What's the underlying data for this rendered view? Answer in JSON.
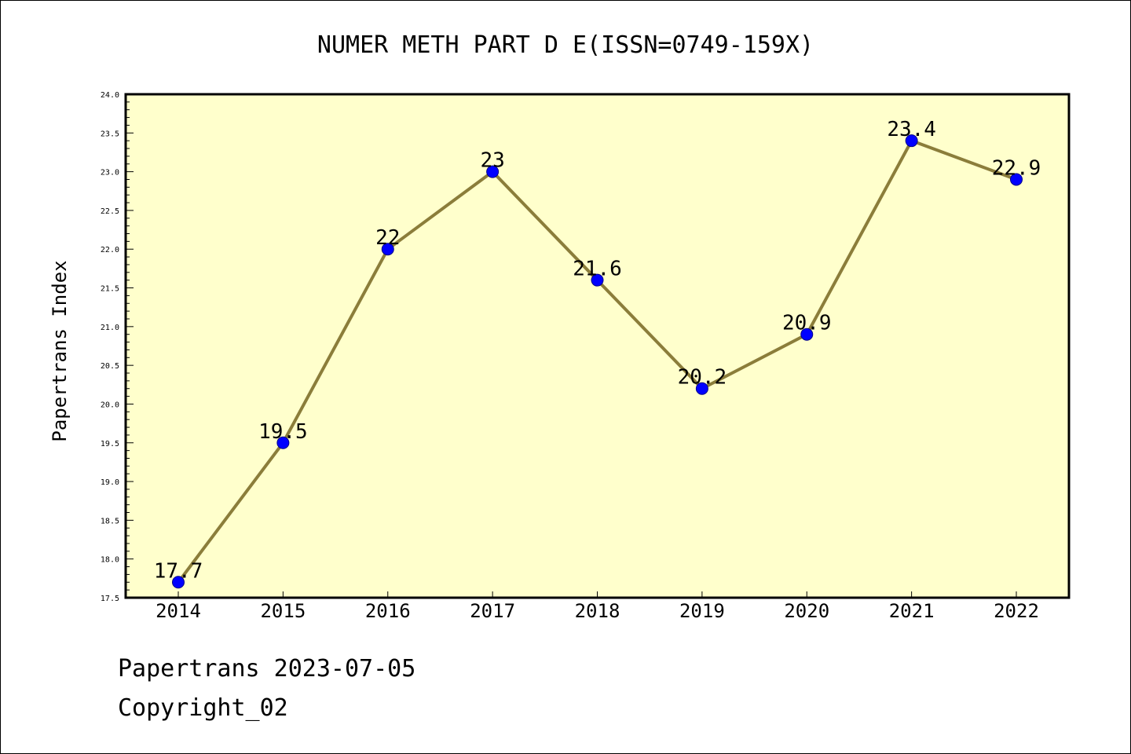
{
  "chart_data": {
    "type": "line",
    "title": "NUMER METH PART D E(ISSN=0749-159X)",
    "xlabel": "",
    "ylabel": "Papertrans Index",
    "categories": [
      "2014",
      "2015",
      "2016",
      "2017",
      "2018",
      "2019",
      "2020",
      "2021",
      "2022"
    ],
    "series": [
      {
        "values": [
          17.7,
          19.5,
          22,
          23,
          21.6,
          20.2,
          20.9,
          23.4,
          22.9
        ],
        "labels": [
          "17.7",
          "19.5",
          "22",
          "23",
          "21.6",
          "20.2",
          "20.9",
          "23.4",
          "22.9"
        ]
      }
    ],
    "ylim": [
      17.5,
      24.0
    ],
    "yticks": [
      "17.5",
      "18.0",
      "18.5",
      "19.0",
      "19.5",
      "20.0",
      "20.5",
      "21.0",
      "21.5",
      "22.0",
      "22.5",
      "23.0",
      "23.5",
      "24.0"
    ],
    "grid": false,
    "legend": "none",
    "colors": {
      "plot_background": "#ffffcc",
      "line": "#8b7d3a",
      "marker": "#0000ff",
      "marker_edge": "#00008b"
    }
  },
  "footer": {
    "line1": "Papertrans 2023-07-05",
    "line2": "Copyright_02"
  }
}
